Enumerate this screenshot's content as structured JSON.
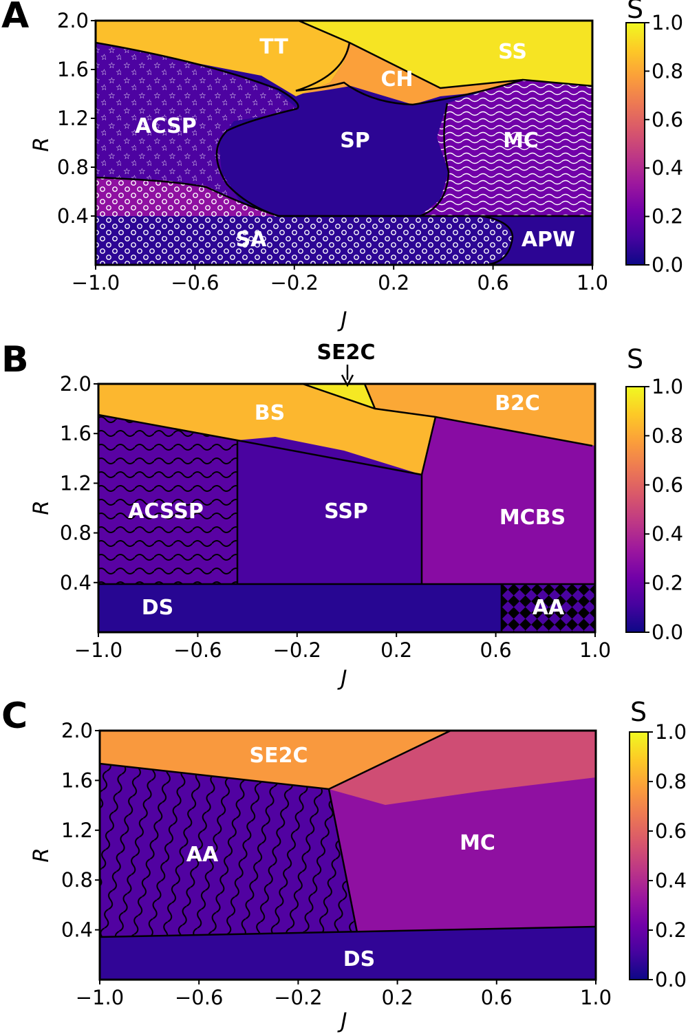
{
  "colors": {
    "cmap": [
      "#0d0887",
      "#46039f",
      "#7201a8",
      "#9c179e",
      "#bd3786",
      "#d8576b",
      "#ed7953",
      "#fb9f3a",
      "#fdca26",
      "#f0f921"
    ],
    "boundary": "#000000",
    "label": "#ffffff"
  },
  "chart_data": [
    {
      "panel": "A",
      "type": "heatmap",
      "xlabel": "J",
      "ylabel": "R",
      "xlim": [
        -1.0,
        1.0
      ],
      "ylim": [
        0.0,
        2.0
      ],
      "xticks": [
        "−1.0",
        "−0.6",
        "−0.2",
        "0.2",
        "0.6",
        "1.0"
      ],
      "yticks": [
        "0.4",
        "0.8",
        "1.2",
        "1.6",
        "2.0"
      ],
      "colorbar": {
        "title": "S",
        "min": 0.0,
        "max": 1.0,
        "ticks": [
          "0.0",
          "0.2",
          "0.4",
          "0.6",
          "0.8",
          "1.0"
        ]
      },
      "regions": [
        {
          "label": "TT",
          "S": 0.85,
          "pattern": "none"
        },
        {
          "label": "SS",
          "S": 0.97,
          "pattern": "none"
        },
        {
          "label": "CH",
          "S": 0.82,
          "pattern": "none"
        },
        {
          "label": "ACSP",
          "S": 0.12,
          "pattern": "stars"
        },
        {
          "label": "SP",
          "S": 0.06,
          "pattern": "none"
        },
        {
          "label": "MC",
          "S": 0.2,
          "pattern": "waves"
        },
        {
          "label": "SA",
          "S": 0.15,
          "pattern": "circles"
        },
        {
          "label": "APW",
          "S": 0.05,
          "pattern": "none"
        }
      ]
    },
    {
      "panel": "B",
      "type": "heatmap",
      "xlabel": "J",
      "ylabel": "R",
      "xlim": [
        -1.0,
        1.0
      ],
      "ylim": [
        0.0,
        2.0
      ],
      "xticks": [
        "−1.0",
        "−0.6",
        "−0.2",
        "0.2",
        "0.6",
        "1.0"
      ],
      "yticks": [
        "0.4",
        "0.8",
        "1.2",
        "1.6",
        "2.0"
      ],
      "colorbar": {
        "title": "S",
        "min": 0.0,
        "max": 1.0,
        "ticks": [
          "0.0",
          "0.2",
          "0.4",
          "0.6",
          "0.8",
          "1.0"
        ]
      },
      "annotation": "SE2C",
      "regions": [
        {
          "label": "BS",
          "S": 0.85,
          "pattern": "none"
        },
        {
          "label": "SE2C",
          "S": 0.95,
          "pattern": "none"
        },
        {
          "label": "B2C",
          "S": 0.8,
          "pattern": "none"
        },
        {
          "label": "ACSSP",
          "S": 0.15,
          "pattern": "waves"
        },
        {
          "label": "SSP",
          "S": 0.1,
          "pattern": "none"
        },
        {
          "label": "MCBS",
          "S": 0.25,
          "pattern": "none"
        },
        {
          "label": "DS",
          "S": 0.05,
          "pattern": "none"
        },
        {
          "label": "AA",
          "S": 0.1,
          "pattern": "checker"
        }
      ]
    },
    {
      "panel": "C",
      "type": "heatmap",
      "xlabel": "J",
      "ylabel": "R",
      "xlim": [
        -1.0,
        1.0
      ],
      "ylim": [
        0.0,
        2.0
      ],
      "xticks": [
        "−1.0",
        "−0.6",
        "−0.2",
        "0.2",
        "0.6",
        "1.0"
      ],
      "yticks": [
        "0.4",
        "0.8",
        "1.2",
        "1.6",
        "2.0"
      ],
      "colorbar": {
        "title": "S",
        "min": 0.0,
        "max": 1.0,
        "ticks": [
          "0.0",
          "0.2",
          "0.4",
          "0.6",
          "0.8",
          "1.0"
        ]
      },
      "regions": [
        {
          "label": "SE2C",
          "S": 0.75,
          "pattern": "none"
        },
        {
          "label": "MC",
          "S": 0.3,
          "pattern": "none"
        },
        {
          "label": "AA",
          "S": 0.12,
          "pattern": "waves"
        },
        {
          "label": "DS",
          "S": 0.06,
          "pattern": "none"
        }
      ]
    }
  ]
}
